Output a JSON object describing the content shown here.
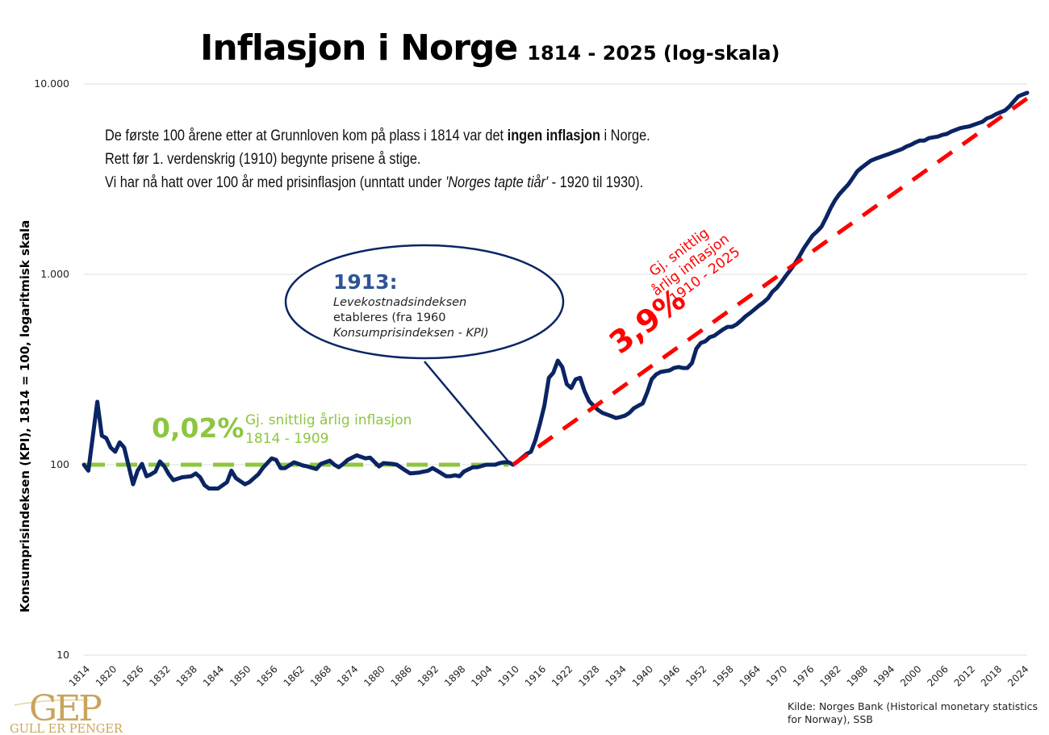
{
  "title": {
    "main": "Inflasjon i Norge",
    "sub": "1814 - 2025 (log-skala)"
  },
  "intro": {
    "line1_pre": "De første 100 årene etter at Grunnloven kom på plass i 1814 var det ",
    "line1_bold": "ingen inflasjon",
    "line1_post": " i Norge.",
    "line2": "Rett før 1. verdenskrig (1910) begynte prisene å stige.",
    "line3_pre": "Vi har nå hatt over 100 år med prisinflasjon (unntatt under ",
    "line3_italic": "'Norges tapte tiår'",
    "line3_post": " - 1920 til 1930)."
  },
  "annotations": {
    "green_rate": "0,02%",
    "green_label_1": "Gj. snittlig årlig inflasjon",
    "green_label_2": "1814 - 1909",
    "red_rate": "3,9%",
    "red_label_1": "Gj. snittlig",
    "red_label_2": "årlig inflasjon",
    "red_label_3": "1910 - 2025",
    "bubble_year": "1913:",
    "bubble_line_1": "Levekostnadsindeksen",
    "bubble_line_2": "etableres (fra 1960",
    "bubble_line_3": "Konsumprisindeksen - KPI)"
  },
  "colors": {
    "series": "#0b2463",
    "green_trend": "#8cc63f",
    "red_trend": "#ff0000",
    "bubble_border": "#0b2463",
    "bubble_year": "#2e5597",
    "grid": "#dddddd",
    "logo": "#c9a45c"
  },
  "logo": {
    "mark": "GEP",
    "name": "GULL ER PENGER"
  },
  "source": "Kilde: Norges Bank (Historical monetary statistics for Norway), SSB",
  "chart_data": {
    "type": "line",
    "title": "Inflasjon i Norge 1814 - 2025 (log-skala)",
    "xlabel": "",
    "ylabel": "Konsumprisindeksen (KPI), 1814 = 100, logaritmisk skala",
    "yscale": "log",
    "ylim": [
      10,
      10000
    ],
    "xlim": [
      1814,
      2025
    ],
    "grid": true,
    "y_ticks": [
      10,
      100,
      1000,
      10000
    ],
    "y_tick_labels": [
      "10",
      "100",
      "1.000",
      "10.000"
    ],
    "x_tick_labels": [
      "1814",
      "1820",
      "1826",
      "1832",
      "1838",
      "1844",
      "1850",
      "1856",
      "1862",
      "1868",
      "1874",
      "1880",
      "1886",
      "1892",
      "1898",
      "1904",
      "1910",
      "1916",
      "1922",
      "1928",
      "1934",
      "1940",
      "1946",
      "1952",
      "1958",
      "1964",
      "1970",
      "1976",
      "1982",
      "1988",
      "1994",
      "2000",
      "2006",
      "2012",
      "2018",
      "2024"
    ],
    "series": [
      {
        "name": "KPI (1814 = 100)",
        "x": [
          1814,
          1815,
          1817,
          1818,
          1819,
          1820,
          1821,
          1822,
          1823,
          1825,
          1826,
          1827,
          1828,
          1829,
          1830,
          1831,
          1832,
          1833,
          1834,
          1836,
          1838,
          1839,
          1840,
          1841,
          1842,
          1844,
          1846,
          1847,
          1848,
          1850,
          1851,
          1853,
          1854,
          1856,
          1857,
          1858,
          1859,
          1861,
          1863,
          1864,
          1866,
          1867,
          1869,
          1870,
          1871,
          1872,
          1873,
          1875,
          1876,
          1877,
          1878,
          1880,
          1881,
          1883,
          1884,
          1886,
          1887,
          1889,
          1891,
          1892,
          1893,
          1895,
          1896,
          1897,
          1898,
          1899,
          1901,
          1902,
          1904,
          1906,
          1907,
          1908,
          1909,
          1910,
          1911,
          1913,
          1914,
          1915,
          1916,
          1917,
          1918,
          1919,
          1920,
          1921,
          1922,
          1923,
          1924,
          1925,
          1926,
          1927,
          1928,
          1929,
          1930,
          1932,
          1933,
          1934,
          1935,
          1936,
          1937,
          1938,
          1939,
          1940,
          1941,
          1942,
          1943,
          1945,
          1946,
          1947,
          1948,
          1949,
          1950,
          1951,
          1952,
          1953,
          1954,
          1955,
          1956,
          1957,
          1958,
          1959,
          1960,
          1961,
          1962,
          1963,
          1964,
          1965,
          1966,
          1967,
          1968,
          1969,
          1970,
          1971,
          1972,
          1973,
          1974,
          1975,
          1976,
          1977,
          1978,
          1979,
          1980,
          1981,
          1982,
          1983,
          1984,
          1985,
          1986,
          1987,
          1988,
          1989,
          1990,
          1991,
          1992,
          1993,
          1994,
          1995,
          1996,
          1997,
          1998,
          1999,
          2000,
          2001,
          2002,
          2003,
          2004,
          2005,
          2006,
          2007,
          2008,
          2009,
          2010,
          2011,
          2012,
          2013,
          2014,
          2015,
          2016,
          2017,
          2018,
          2019,
          2020,
          2021,
          2022,
          2023,
          2024,
          2025
        ],
        "values": [
          100,
          93,
          214,
          142,
          138,
          123,
          117,
          131,
          123,
          79,
          93,
          101,
          87,
          89,
          92,
          104,
          98,
          89,
          83,
          86,
          87,
          90,
          86,
          78,
          75,
          75,
          81,
          93,
          85,
          79,
          81,
          89,
          96,
          108,
          106,
          96,
          96,
          103,
          99,
          98,
          95,
          101,
          105,
          100,
          97,
          101,
          106,
          112,
          110,
          108,
          109,
          98,
          102,
          101,
          100,
          93,
          90,
          91,
          93,
          96,
          93,
          87,
          87,
          88,
          87,
          92,
          97,
          97,
          100,
          100,
          102,
          103,
          103,
          100,
          104,
          114,
          117,
          135,
          164,
          204,
          286,
          304,
          352,
          326,
          265,
          253,
          281,
          286,
          243,
          216,
          204,
          194,
          187,
          180,
          176,
          178,
          181,
          187,
          198,
          204,
          210,
          240,
          281,
          298,
          307,
          313,
          322,
          326,
          322,
          322,
          342,
          407,
          436,
          445,
          467,
          476,
          495,
          514,
          530,
          530,
          546,
          572,
          602,
          626,
          654,
          685,
          712,
          748,
          810,
          850,
          910,
          981,
          1052,
          1136,
          1240,
          1366,
          1479,
          1600,
          1680,
          1780,
          1980,
          2220,
          2450,
          2640,
          2800,
          2970,
          3210,
          3480,
          3640,
          3790,
          3950,
          4040,
          4120,
          4200,
          4280,
          4370,
          4460,
          4550,
          4690,
          4790,
          4930,
          5040,
          5040,
          5190,
          5240,
          5290,
          5400,
          5460,
          5620,
          5740,
          5860,
          5920,
          5980,
          6090,
          6210,
          6330,
          6590,
          6720,
          6930,
          7090,
          7250,
          7600,
          8100,
          8600,
          8800,
          8980
        ]
      },
      {
        "name": "Gj. snittlig årlig inflasjon 1814 - 1909 (0,02%)",
        "style": "dashed",
        "x": [
          1814,
          1909
        ],
        "values": [
          100,
          102
        ]
      },
      {
        "name": "Gj. snittlig årlig inflasjon 1910 - 2025 (3,9%)",
        "style": "dashed",
        "x": [
          1910,
          2025
        ],
        "values": [
          100,
          8150
        ]
      }
    ],
    "annotations": [
      {
        "text": "0,02% Gj. snittlig årlig inflasjon 1814 - 1909",
        "color": "green"
      },
      {
        "text": "3,9% Gj. snittlig årlig inflasjon 1910 - 2025",
        "color": "red"
      },
      {
        "text": "1913: Levekostnadsindeksen etableres (fra 1960 Konsumprisindeksen - KPI)",
        "shape": "callout-ellipse",
        "points_to_year": 1910
      }
    ]
  }
}
